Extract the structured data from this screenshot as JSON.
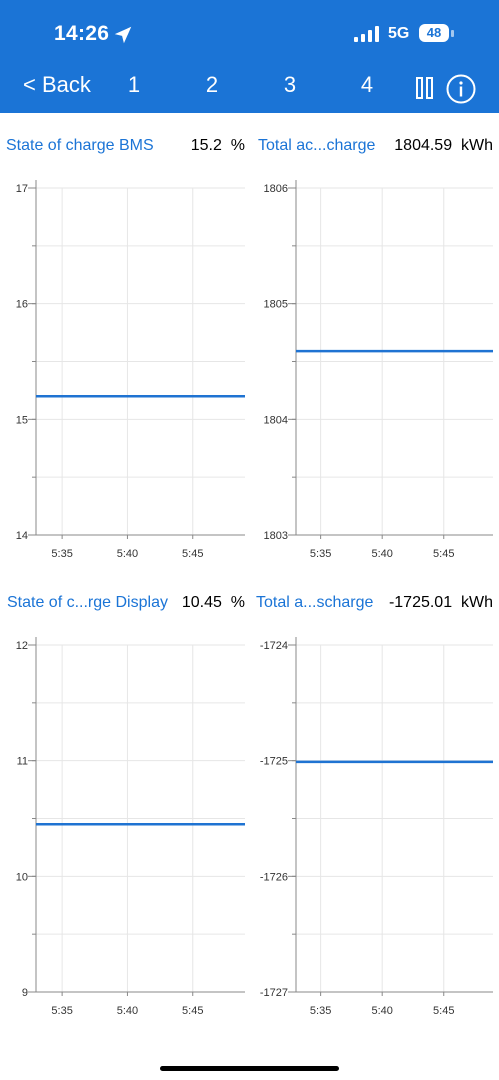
{
  "status_bar": {
    "time": "14:26",
    "network": "5G",
    "battery": "48",
    "icons": [
      "location-arrow-icon",
      "signal-bars-icon",
      "battery-icon"
    ]
  },
  "nav": {
    "back_label": "< Back",
    "tabs": [
      "1",
      "2",
      "3",
      "4"
    ],
    "icons": [
      "pause-icon",
      "info-icon"
    ]
  },
  "colors": {
    "accent": "#1b74d6",
    "series": "#1f73d2",
    "grid": "#e6e6e6",
    "axis": "#888888"
  },
  "chart_data": [
    {
      "type": "line",
      "title": "State of charge BMS",
      "value": "15.2",
      "unit": "%",
      "ylim": [
        14,
        17
      ],
      "yticks": [
        "14",
        "15",
        "16",
        "17"
      ],
      "xticks": [
        "5:35",
        "5:40",
        "5:45"
      ],
      "series": [
        {
          "x": [
            "5:33",
            "5:49"
          ],
          "y": [
            15.2,
            15.2
          ]
        }
      ]
    },
    {
      "type": "line",
      "title": "Total ac...charge",
      "value": "1804.59",
      "unit": "kWh",
      "ylim": [
        1803,
        1806
      ],
      "yticks": [
        "1803",
        "1804",
        "1805",
        "1806"
      ],
      "xticks": [
        "5:35",
        "5:40",
        "5:45"
      ],
      "series": [
        {
          "x": [
            "5:33",
            "5:49"
          ],
          "y": [
            1804.59,
            1804.59
          ]
        }
      ]
    },
    {
      "type": "line",
      "title": "State of c...rge Display",
      "value": "10.45",
      "unit": "%",
      "ylim": [
        9,
        12
      ],
      "yticks": [
        "9",
        "10",
        "11",
        "12"
      ],
      "xticks": [
        "5:35",
        "5:40",
        "5:45"
      ],
      "series": [
        {
          "x": [
            "5:33",
            "5:49"
          ],
          "y": [
            10.45,
            10.45
          ]
        }
      ]
    },
    {
      "type": "line",
      "title": "Total a...scharge",
      "value": "-1725.01",
      "unit": "kWh",
      "ylim": [
        -1727,
        -1724
      ],
      "yticks": [
        "-1727",
        "-1726",
        "-1725",
        "-1724"
      ],
      "xticks": [
        "5:35",
        "5:40",
        "5:45"
      ],
      "series": [
        {
          "x": [
            "5:33",
            "5:49"
          ],
          "y": [
            -1725.01,
            -1725.01
          ]
        }
      ]
    }
  ]
}
